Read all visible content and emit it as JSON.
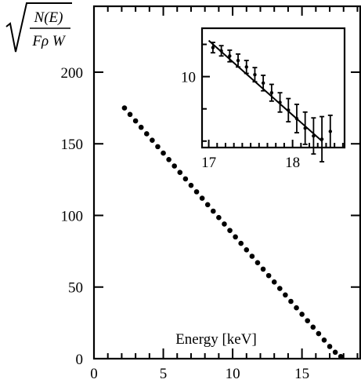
{
  "chart_data": [
    {
      "type": "scatter",
      "title": "",
      "xlabel": "Energy [keV]",
      "ylabel_numerator": "N(E)",
      "ylabel_denominator": "Fρ W",
      "xlim": [
        0,
        19.2
      ],
      "ylim": [
        0,
        246
      ],
      "x_ticks": [
        "0",
        "5",
        "10",
        "15"
      ],
      "x_tick_values": [
        0,
        5,
        10,
        15
      ],
      "y_ticks": [
        "0",
        "50",
        "100",
        "150",
        "200"
      ],
      "y_tick_values": [
        0,
        50,
        100,
        150,
        200
      ],
      "grid": false,
      "series": [
        {
          "x": [
            2.2,
            2.6,
            3.0,
            3.4,
            3.8,
            4.2,
            4.6,
            5.0,
            5.4,
            5.8,
            6.2,
            6.6,
            7.0,
            7.4,
            7.8,
            8.2,
            8.6,
            9.0,
            9.4,
            9.8,
            10.2,
            10.6,
            11.0,
            11.4,
            11.8,
            12.2,
            12.6,
            13.0,
            13.4,
            13.8,
            14.2,
            14.6,
            15.0,
            15.4,
            15.8,
            16.2,
            16.6,
            17.0,
            17.4,
            17.8
          ],
          "y": [
            175,
            170.5,
            166,
            161.5,
            157,
            152.5,
            148,
            143.5,
            139,
            134.5,
            130,
            125.5,
            121,
            116.5,
            112,
            107.5,
            103,
            98.5,
            94,
            89.5,
            85,
            80.5,
            76,
            71.5,
            67,
            62.5,
            58,
            53.5,
            49,
            44.5,
            40,
            35.5,
            31,
            26.5,
            22,
            17.5,
            13,
            8.5,
            4.5,
            1.5
          ]
        }
      ]
    },
    {
      "type": "scatter",
      "title": "",
      "xlim": [
        16.92,
        18.62
      ],
      "ylim": [
        -1,
        17.5
      ],
      "x_ticks": [
        "17",
        "18"
      ],
      "x_tick_values": [
        17,
        18
      ],
      "y_ticks": [
        "10"
      ],
      "y_tick_values": [
        10
      ],
      "grid": false,
      "fit_line": {
        "x": [
          17.0,
          18.35
        ],
        "y": [
          15.6,
          0
        ]
      },
      "series": [
        {
          "x": [
            17.05,
            17.15,
            17.25,
            17.35,
            17.45,
            17.55,
            17.65,
            17.75,
            17.85,
            17.95,
            18.05,
            18.15,
            18.25,
            18.35,
            18.45
          ],
          "y": [
            14.5,
            14.0,
            13.2,
            12.5,
            11.5,
            10.3,
            9.0,
            7.5,
            6.0,
            4.8,
            3.5,
            2.0,
            0.8,
            0.3,
            1.5
          ],
          "err": [
            0.8,
            0.8,
            0.9,
            1.0,
            1.0,
            1.1,
            1.2,
            1.3,
            1.5,
            1.8,
            2.2,
            2.5,
            2.8,
            3.5,
            2.5
          ]
        }
      ]
    }
  ]
}
